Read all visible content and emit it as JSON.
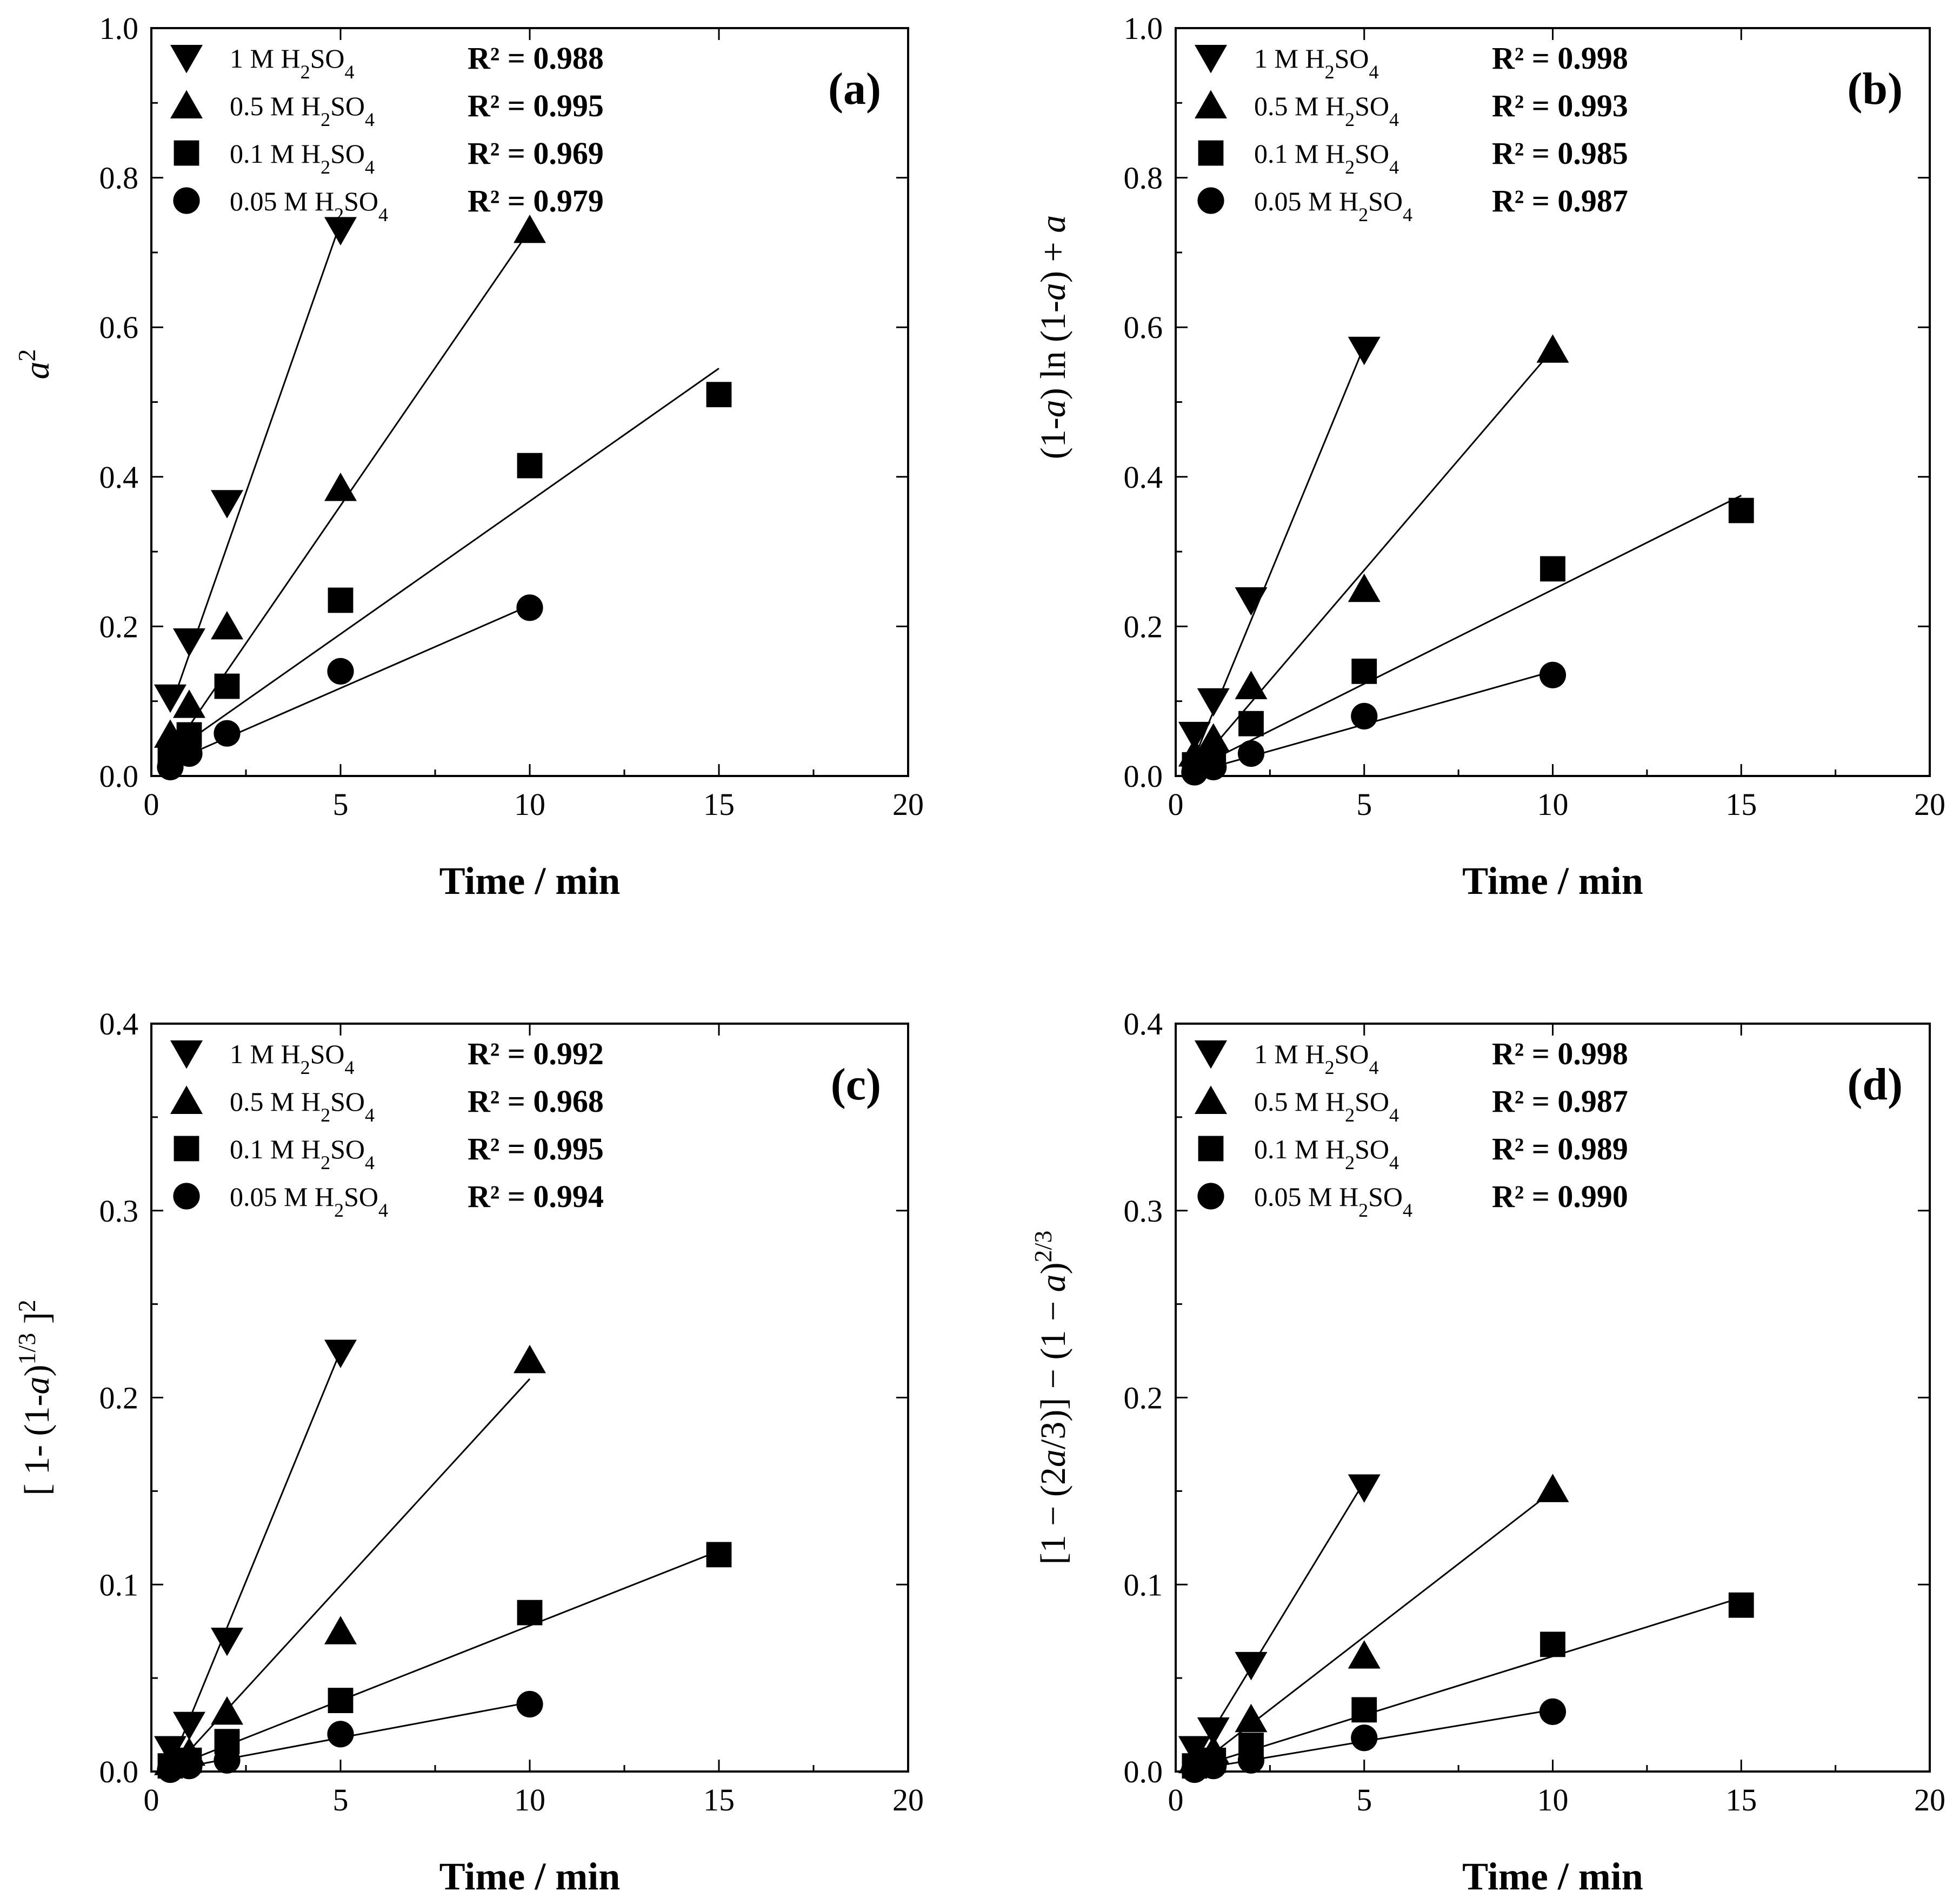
{
  "marker_color": "#000000",
  "chart_data": [
    {
      "type": "scatter",
      "panel": "(a)",
      "xlabel": "Time / min",
      "ylabel": "a^2",
      "xlim": [
        0,
        20
      ],
      "ylim": [
        0,
        1.0
      ],
      "xticks": [
        "0",
        "5",
        "10",
        "15",
        "20"
      ],
      "yticks": [
        "0.0",
        "0.2",
        "0.4",
        "0.6",
        "0.8",
        "1.0"
      ],
      "series": [
        {
          "name": "1 M H2SO4",
          "label_parts": [
            "1 M H",
            "2",
            "SO",
            "4"
          ],
          "marker": "triangle-down",
          "r2": "R² = 0.988",
          "x": [
            0.5,
            1,
            2,
            5
          ],
          "y": [
            0.105,
            0.18,
            0.365,
            0.73
          ],
          "fit": [
            [
              0.5,
              0.09
            ],
            [
              5,
              0.74
            ]
          ]
        },
        {
          "name": "0.5 M H2SO4",
          "label_parts": [
            "0.5 M H",
            "2",
            "SO",
            "4"
          ],
          "marker": "triangle-up",
          "r2": "R² = 0.995",
          "x": [
            0.5,
            1,
            2,
            5,
            10
          ],
          "y": [
            0.055,
            0.095,
            0.2,
            0.385,
            0.73
          ],
          "fit": [
            [
              0.5,
              0.03
            ],
            [
              10,
              0.73
            ]
          ]
        },
        {
          "name": "0.1 M H2SO4",
          "label_parts": [
            "0.1 M H",
            "2",
            "SO",
            "4"
          ],
          "marker": "square",
          "r2": "R² = 0.969",
          "x": [
            0.5,
            1,
            2,
            5,
            10,
            15
          ],
          "y": [
            0.03,
            0.055,
            0.12,
            0.235,
            0.415,
            0.51
          ],
          "fit": [
            [
              0.5,
              0.03
            ],
            [
              15,
              0.545
            ]
          ]
        },
        {
          "name": "0.05 M H2SO4",
          "label_parts": [
            "0.05 M H",
            "2",
            "SO",
            "4"
          ],
          "marker": "circle",
          "r2": "R² = 0.979",
          "x": [
            0.5,
            1,
            2,
            5,
            10
          ],
          "y": [
            0.012,
            0.03,
            0.057,
            0.14,
            0.225
          ],
          "fit": [
            [
              0.5,
              0.018
            ],
            [
              10,
              0.228
            ]
          ]
        }
      ]
    },
    {
      "type": "scatter",
      "panel": "(b)",
      "xlabel": "Time / min",
      "ylabel": "(1-a) ln (1-a) + a",
      "xlim": [
        0,
        20
      ],
      "ylim": [
        0,
        1.0
      ],
      "xticks": [
        "0",
        "5",
        "10",
        "15",
        "20"
      ],
      "yticks": [
        "0.0",
        "0.2",
        "0.4",
        "0.6",
        "0.8",
        "1.0"
      ],
      "series": [
        {
          "name": "1 M H2SO4",
          "label_parts": [
            "1 M H",
            "2",
            "SO",
            "4"
          ],
          "marker": "triangle-down",
          "r2": "R² = 0.998",
          "x": [
            0.5,
            1,
            2,
            5
          ],
          "y": [
            0.055,
            0.1,
            0.235,
            0.57
          ],
          "fit": [
            [
              0.5,
              0.025
            ],
            [
              5,
              0.575
            ]
          ]
        },
        {
          "name": "0.5 M H2SO4",
          "label_parts": [
            "0.5 M H",
            "2",
            "SO",
            "4"
          ],
          "marker": "triangle-up",
          "r2": "R² = 0.993",
          "x": [
            0.5,
            1,
            2,
            5,
            10
          ],
          "y": [
            0.03,
            0.05,
            0.12,
            0.25,
            0.57
          ],
          "fit": [
            [
              0.5,
              0.01
            ],
            [
              10,
              0.57
            ]
          ]
        },
        {
          "name": "0.1 M H2SO4",
          "label_parts": [
            "0.1 M H",
            "2",
            "SO",
            "4"
          ],
          "marker": "square",
          "r2": "R² = 0.985",
          "x": [
            0.5,
            1,
            2,
            5,
            10,
            15
          ],
          "y": [
            0.015,
            0.025,
            0.07,
            0.14,
            0.277,
            0.355
          ],
          "fit": [
            [
              0.5,
              0.01
            ],
            [
              15,
              0.375
            ]
          ]
        },
        {
          "name": "0.05 M H2SO4",
          "label_parts": [
            "0.05 M H",
            "2",
            "SO",
            "4"
          ],
          "marker": "circle",
          "r2": "R² = 0.987",
          "x": [
            0.5,
            1,
            2,
            5,
            10
          ],
          "y": [
            0.005,
            0.012,
            0.03,
            0.08,
            0.135
          ],
          "fit": [
            [
              0.5,
              0.005
            ],
            [
              10,
              0.14
            ]
          ]
        }
      ]
    },
    {
      "type": "scatter",
      "panel": "(c)",
      "xlabel": "Time / min",
      "ylabel": "[ 1- (1-a)^1/3 ]^2",
      "xlim": [
        0,
        20
      ],
      "ylim": [
        0,
        0.4
      ],
      "xticks": [
        "0",
        "5",
        "10",
        "15",
        "20"
      ],
      "yticks": [
        "0.0",
        "0.1",
        "0.2",
        "0.3",
        "0.4"
      ],
      "series": [
        {
          "name": "1 M H2SO4",
          "label_parts": [
            "1 M H",
            "2",
            "SO",
            "4"
          ],
          "marker": "triangle-down",
          "r2": "R² = 0.992",
          "x": [
            0.5,
            1,
            2,
            5
          ],
          "y": [
            0.012,
            0.025,
            0.07,
            0.224
          ],
          "fit": [
            [
              0.5,
              0.003
            ],
            [
              5,
              0.225
            ]
          ]
        },
        {
          "name": "0.5 M H2SO4",
          "label_parts": [
            "0.5 M H",
            "2",
            "SO",
            "4"
          ],
          "marker": "triangle-up",
          "r2": "R² = 0.968",
          "x": [
            0.5,
            1,
            2,
            5,
            10
          ],
          "y": [
            0.005,
            0.01,
            0.032,
            0.075,
            0.22
          ],
          "fit": [
            [
              0.5,
              0.0
            ],
            [
              10,
              0.21
            ]
          ]
        },
        {
          "name": "0.1 M H2SO4",
          "label_parts": [
            "0.1 M H",
            "2",
            "SO",
            "4"
          ],
          "marker": "square",
          "r2": "R² = 0.995",
          "x": [
            0.5,
            1,
            2,
            5,
            10,
            15
          ],
          "y": [
            0.003,
            0.006,
            0.016,
            0.038,
            0.085,
            0.116
          ],
          "fit": [
            [
              0.5,
              0.002
            ],
            [
              15,
              0.118
            ]
          ]
        },
        {
          "name": "0.05 M H2SO4",
          "label_parts": [
            "0.05 M H",
            "2",
            "SO",
            "4"
          ],
          "marker": "circle",
          "r2": "R² = 0.994",
          "x": [
            0.5,
            1,
            2,
            5,
            10
          ],
          "y": [
            0.001,
            0.003,
            0.006,
            0.02,
            0.036
          ],
          "fit": [
            [
              0.5,
              0.001
            ],
            [
              10,
              0.037
            ]
          ]
        }
      ]
    },
    {
      "type": "scatter",
      "panel": "(d)",
      "xlabel": "Time / min",
      "ylabel": "[1 − (2a/3)] − (1 − a)^2/3",
      "xlim": [
        0,
        20
      ],
      "ylim": [
        0,
        0.4
      ],
      "xticks": [
        "0",
        "5",
        "10",
        "15",
        "20"
      ],
      "yticks": [
        "0.0",
        "0.1",
        "0.2",
        "0.3",
        "0.4"
      ],
      "series": [
        {
          "name": "1 M H2SO4",
          "label_parts": [
            "1 M H",
            "2",
            "SO",
            "4"
          ],
          "marker": "triangle-down",
          "r2": "R² = 0.998",
          "x": [
            0.5,
            1,
            2,
            5
          ],
          "y": [
            0.012,
            0.022,
            0.057,
            0.152
          ],
          "fit": [
            [
              0.5,
              0.006
            ],
            [
              5,
              0.155
            ]
          ]
        },
        {
          "name": "0.5 M H2SO4",
          "label_parts": [
            "0.5 M H",
            "2",
            "SO",
            "4"
          ],
          "marker": "triangle-up",
          "r2": "R² = 0.987",
          "x": [
            0.5,
            1,
            2,
            5,
            10
          ],
          "y": [
            0.006,
            0.011,
            0.028,
            0.062,
            0.151
          ],
          "fit": [
            [
              0.5,
              0.002
            ],
            [
              10,
              0.15
            ]
          ]
        },
        {
          "name": "0.1 M H2SO4",
          "label_parts": [
            "0.1 M H",
            "2",
            "SO",
            "4"
          ],
          "marker": "square",
          "r2": "R² = 0.989",
          "x": [
            0.5,
            1,
            2,
            5,
            10,
            15
          ],
          "y": [
            0.003,
            0.006,
            0.014,
            0.033,
            0.068,
            0.089
          ],
          "fit": [
            [
              0.5,
              0.002
            ],
            [
              15,
              0.093
            ]
          ]
        },
        {
          "name": "0.05 M H2SO4",
          "label_parts": [
            "0.05 M H",
            "2",
            "SO",
            "4"
          ],
          "marker": "circle",
          "r2": "R² = 0.990",
          "x": [
            0.5,
            1,
            2,
            5,
            10
          ],
          "y": [
            0.001,
            0.003,
            0.006,
            0.018,
            0.032
          ],
          "fit": [
            [
              0.5,
              0.001
            ],
            [
              10,
              0.033
            ]
          ]
        }
      ]
    }
  ]
}
